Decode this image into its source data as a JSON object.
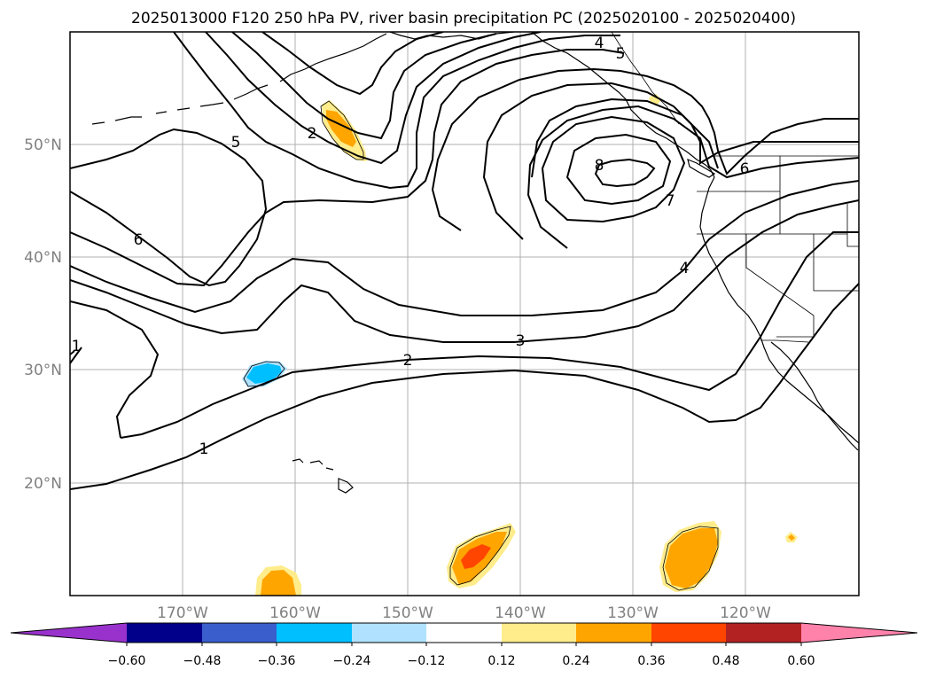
{
  "title": "2025013000 F120 250 hPa PV, river basin precipitation PC (2025020100 - 2025020400)",
  "map": {
    "lon_range": [
      -180,
      -110
    ],
    "lat_range": [
      10,
      60
    ],
    "x_ticks": [
      {
        "value": -170,
        "label": "170°W"
      },
      {
        "value": -160,
        "label": "160°W"
      },
      {
        "value": -150,
        "label": "150°W"
      },
      {
        "value": -140,
        "label": "140°W"
      },
      {
        "value": -130,
        "label": "130°W"
      },
      {
        "value": -120,
        "label": "120°W"
      }
    ],
    "y_ticks": [
      {
        "value": 20,
        "label": "20°N"
      },
      {
        "value": 30,
        "label": "30°N"
      },
      {
        "value": 40,
        "label": "40°N"
      },
      {
        "value": 50,
        "label": "50°N"
      }
    ],
    "gridlines": true
  },
  "pv_contours": {
    "levels": [
      1,
      2,
      3,
      4,
      5,
      6,
      7,
      8
    ],
    "labels": [
      "1",
      "2",
      "3",
      "4",
      "5",
      "6",
      "7",
      "8",
      "2",
      "4",
      "5",
      "6",
      "1"
    ]
  },
  "colorbar": {
    "ticks": [
      "−0.60",
      "−0.48",
      "−0.36",
      "−0.24",
      "−0.12",
      "0.12",
      "0.24",
      "0.36",
      "0.48",
      "0.60"
    ],
    "colors": [
      "#9932cc",
      "#00008b",
      "#3a5fcd",
      "#00bfff",
      "#b0e2ff",
      "#ffffff",
      "#ffec8b",
      "#ffa500",
      "#ff4500",
      "#b22222",
      "#ff82ab"
    ],
    "extend": "both"
  },
  "precip_blobs": [
    {
      "name": "alaska-gulf-west",
      "sign": "positive",
      "max_level": "0.24-0.36"
    },
    {
      "name": "alaska-panhandle",
      "sign": "positive",
      "max_level": "0.12-0.24"
    },
    {
      "name": "subtropics-west",
      "sign": "negative",
      "max_level": "-0.36--0.24"
    },
    {
      "name": "hawaii-south-west",
      "sign": "positive",
      "max_level": "0.24-0.36"
    },
    {
      "name": "tropics-central",
      "sign": "positive",
      "max_level": "0.36-0.48"
    },
    {
      "name": "tropics-east",
      "sign": "positive",
      "max_level": "0.24-0.36"
    },
    {
      "name": "tropics-far-east",
      "sign": "positive",
      "max_level": "0.24-0.36"
    }
  ]
}
